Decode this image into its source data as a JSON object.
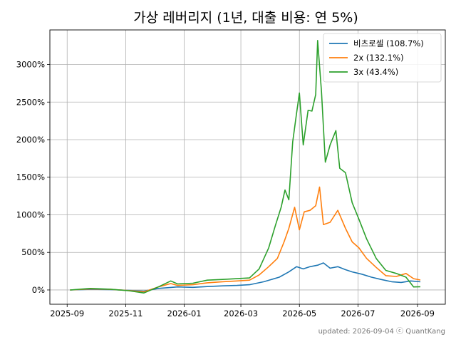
{
  "chart_data": {
    "type": "line",
    "title": "가상 레버리지 (1년, 대출 비용: 연 5%)",
    "xlabel": "",
    "ylabel": "",
    "x_tick_labels": [
      "2025-09",
      "2025-11",
      "2026-01",
      "2026-03",
      "2026-05",
      "2026-07",
      "2026-09"
    ],
    "y_tick_labels": [
      "0%",
      "500%",
      "1000%",
      "1500%",
      "2000%",
      "2500%",
      "3000%"
    ],
    "y_ticks": [
      0,
      500,
      1000,
      1500,
      2000,
      2500,
      3000
    ],
    "xlim": [
      "2025-08-14",
      "2026-09-30"
    ],
    "ylim": [
      -190,
      3460
    ],
    "grid": true,
    "legend_position": "top-right",
    "series": [
      {
        "name": "비츠로셀 (108.7%)",
        "color": "#1f77b4",
        "points": [
          [
            "2025-09-04",
            0
          ],
          [
            "2025-09-25",
            8
          ],
          [
            "2025-10-16",
            5
          ],
          [
            "2025-11-04",
            -5
          ],
          [
            "2025-11-20",
            -15
          ],
          [
            "2025-12-05",
            20
          ],
          [
            "2025-12-25",
            40
          ],
          [
            "2026-01-10",
            35
          ],
          [
            "2026-01-25",
            45
          ],
          [
            "2026-02-10",
            55
          ],
          [
            "2026-02-25",
            60
          ],
          [
            "2026-03-10",
            70
          ],
          [
            "2026-03-25",
            110
          ],
          [
            "2026-04-10",
            170
          ],
          [
            "2026-04-20",
            240
          ],
          [
            "2026-04-28",
            310
          ],
          [
            "2026-05-05",
            280
          ],
          [
            "2026-05-12",
            310
          ],
          [
            "2026-05-20",
            330
          ],
          [
            "2026-05-26",
            360
          ],
          [
            "2026-06-02",
            290
          ],
          [
            "2026-06-10",
            310
          ],
          [
            "2026-06-18",
            270
          ],
          [
            "2026-06-25",
            240
          ],
          [
            "2026-07-05",
            210
          ],
          [
            "2026-07-15",
            170
          ],
          [
            "2026-07-25",
            140
          ],
          [
            "2026-08-05",
            110
          ],
          [
            "2026-08-15",
            100
          ],
          [
            "2026-08-25",
            120
          ],
          [
            "2026-09-04",
            108.7
          ]
        ]
      },
      {
        "name": "2x (132.1%)",
        "color": "#ff7f0e",
        "points": [
          [
            "2025-09-04",
            0
          ],
          [
            "2025-09-25",
            15
          ],
          [
            "2025-10-16",
            8
          ],
          [
            "2025-11-04",
            -8
          ],
          [
            "2025-11-20",
            -25
          ],
          [
            "2025-12-05",
            40
          ],
          [
            "2025-12-18",
            85
          ],
          [
            "2025-12-25",
            60
          ],
          [
            "2026-01-10",
            70
          ],
          [
            "2026-01-25",
            95
          ],
          [
            "2026-02-10",
            110
          ],
          [
            "2026-02-25",
            120
          ],
          [
            "2026-03-10",
            130
          ],
          [
            "2026-03-20",
            200
          ],
          [
            "2026-03-30",
            310
          ],
          [
            "2026-04-08",
            420
          ],
          [
            "2026-04-15",
            640
          ],
          [
            "2026-04-20",
            820
          ],
          [
            "2026-04-26",
            1100
          ],
          [
            "2026-05-01",
            800
          ],
          [
            "2026-05-06",
            1040
          ],
          [
            "2026-05-12",
            1060
          ],
          [
            "2026-05-18",
            1120
          ],
          [
            "2026-05-22",
            1370
          ],
          [
            "2026-05-26",
            870
          ],
          [
            "2026-06-02",
            900
          ],
          [
            "2026-06-10",
            1060
          ],
          [
            "2026-06-18",
            820
          ],
          [
            "2026-06-25",
            640
          ],
          [
            "2026-07-02",
            560
          ],
          [
            "2026-07-10",
            420
          ],
          [
            "2026-07-20",
            300
          ],
          [
            "2026-07-30",
            190
          ],
          [
            "2026-08-10",
            180
          ],
          [
            "2026-08-20",
            220
          ],
          [
            "2026-08-28",
            150
          ],
          [
            "2026-09-04",
            132.1
          ]
        ]
      },
      {
        "name": "3x (43.4%)",
        "color": "#2ca02c",
        "points": [
          [
            "2025-09-04",
            0
          ],
          [
            "2025-09-25",
            20
          ],
          [
            "2025-10-16",
            10
          ],
          [
            "2025-11-04",
            -10
          ],
          [
            "2025-11-20",
            -40
          ],
          [
            "2025-12-05",
            40
          ],
          [
            "2025-12-18",
            120
          ],
          [
            "2025-12-25",
            80
          ],
          [
            "2026-01-10",
            90
          ],
          [
            "2026-01-25",
            130
          ],
          [
            "2026-02-10",
            140
          ],
          [
            "2026-02-25",
            150
          ],
          [
            "2026-03-10",
            160
          ],
          [
            "2026-03-20",
            280
          ],
          [
            "2026-03-30",
            560
          ],
          [
            "2026-04-06",
            860
          ],
          [
            "2026-04-12",
            1100
          ],
          [
            "2026-04-16",
            1330
          ],
          [
            "2026-04-20",
            1200
          ],
          [
            "2026-04-24",
            1970
          ],
          [
            "2026-04-28",
            2350
          ],
          [
            "2026-05-01",
            2620
          ],
          [
            "2026-05-05",
            1930
          ],
          [
            "2026-05-10",
            2390
          ],
          [
            "2026-05-14",
            2380
          ],
          [
            "2026-05-18",
            2600
          ],
          [
            "2026-05-20",
            3320
          ],
          [
            "2026-05-24",
            2640
          ],
          [
            "2026-05-28",
            1700
          ],
          [
            "2026-06-02",
            1930
          ],
          [
            "2026-06-08",
            2120
          ],
          [
            "2026-06-12",
            1620
          ],
          [
            "2026-06-18",
            1560
          ],
          [
            "2026-06-25",
            1160
          ],
          [
            "2026-07-02",
            940
          ],
          [
            "2026-07-10",
            680
          ],
          [
            "2026-07-20",
            420
          ],
          [
            "2026-07-30",
            260
          ],
          [
            "2026-08-10",
            220
          ],
          [
            "2026-08-20",
            170
          ],
          [
            "2026-08-28",
            40
          ],
          [
            "2026-09-04",
            43.4
          ]
        ]
      }
    ]
  },
  "footer": "updated: 2026-09-04 ⓒ QuantKang"
}
